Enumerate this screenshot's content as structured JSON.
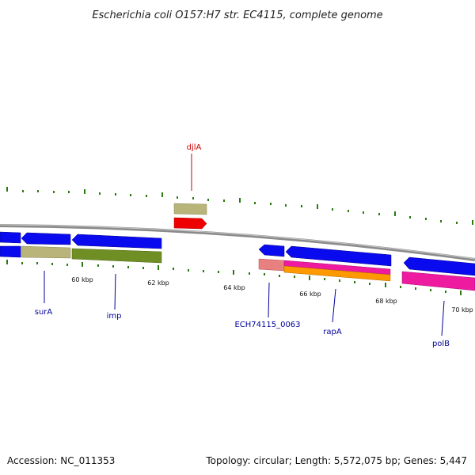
{
  "title": "Escherichia coli O157:H7 str. EC4115, complete genome",
  "footer": {
    "accession": "Accession: NC_011353",
    "summary": "Topology: circular; Length: 5,572,075 bp; Genes: 5,447"
  },
  "scale_labels": [
    "60 kbp",
    "62 kbp",
    "64 kbp",
    "66 kbp",
    "68 kbp",
    "70 kbp"
  ],
  "gene_labels": [
    {
      "name": "djlA",
      "color": "#cc0000"
    },
    {
      "name": "surA",
      "color": "#000099"
    },
    {
      "name": "imp",
      "color": "#000099"
    },
    {
      "name": "ECH74115_0063",
      "color": "#000099"
    },
    {
      "name": "rapA",
      "color": "#000099"
    },
    {
      "name": "polB",
      "color": "#000099"
    }
  ],
  "colors": {
    "backbone": "#8a8a8a",
    "tick": "#2a7a10",
    "cds_blue": "#0a0aee",
    "khaki": "#b8b47a",
    "olive": "#6f8f25",
    "red": "#ee0000",
    "salmon": "#e88080",
    "magenta": "#ee1aa0",
    "orange": "#ff9900"
  }
}
